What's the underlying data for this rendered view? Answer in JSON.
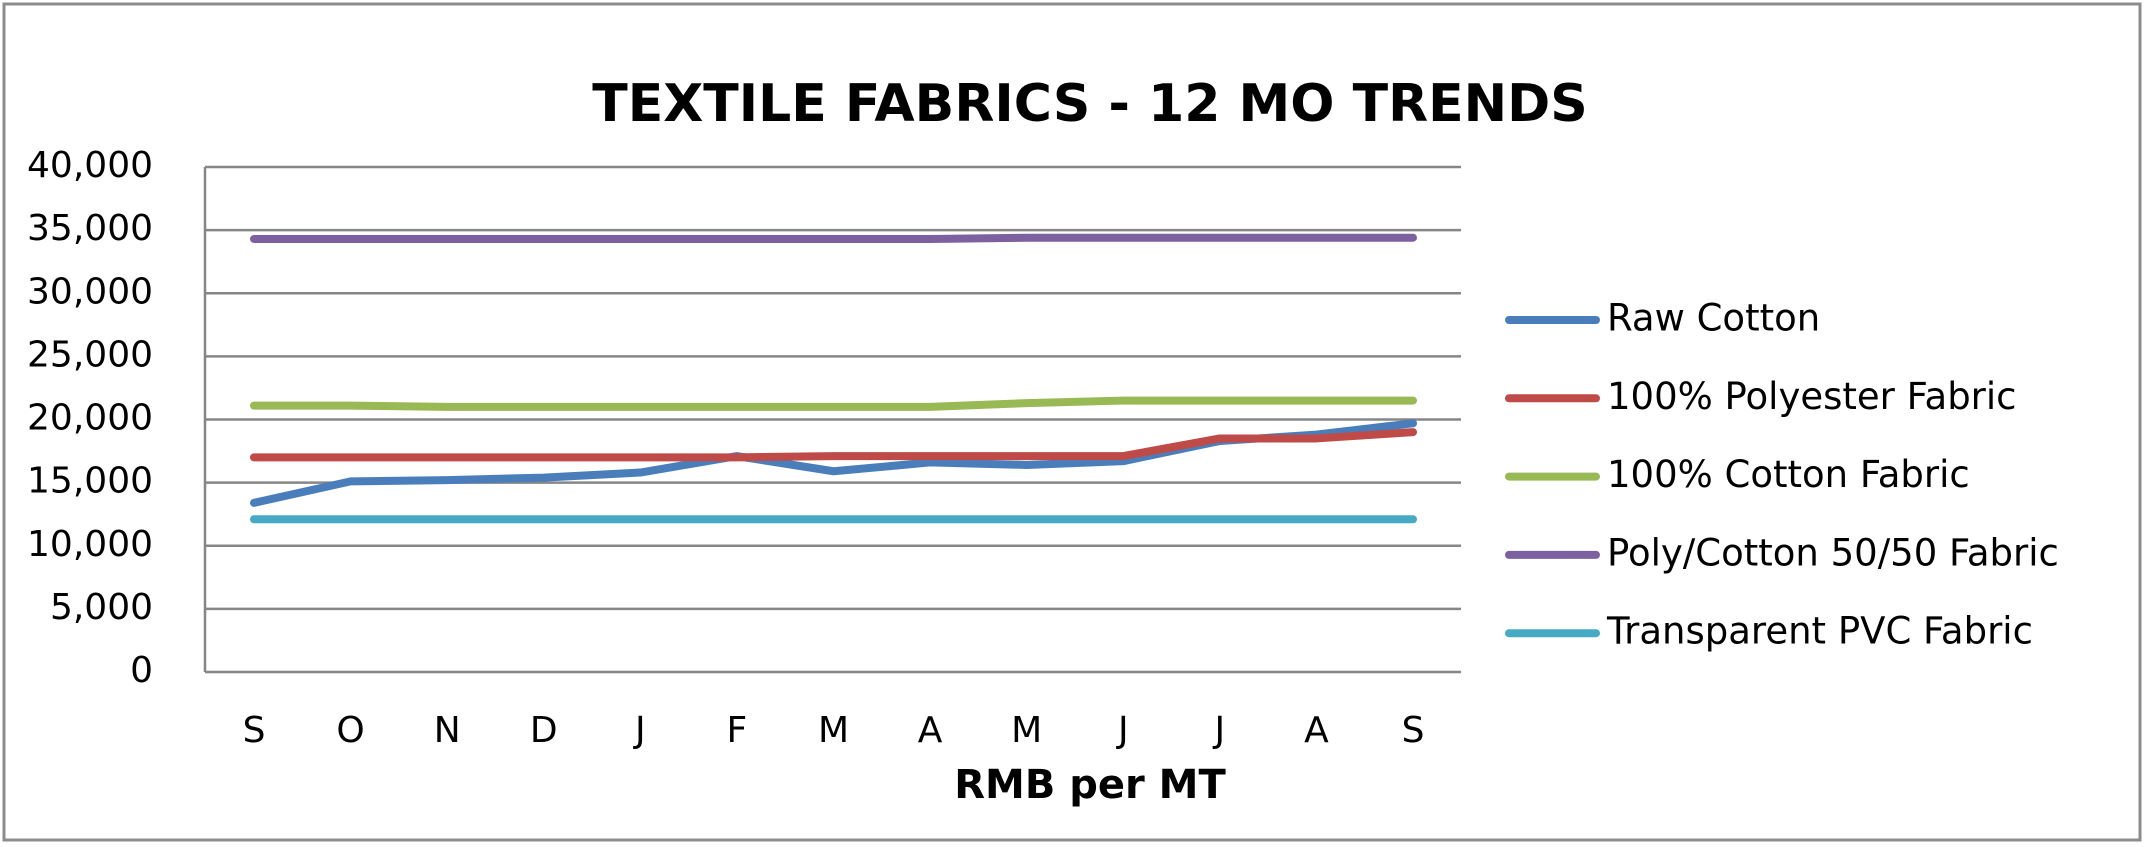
{
  "chart_data": {
    "type": "line",
    "title": "TEXTILE FABRICS - 12 MO TRENDS",
    "x_label": "RMB per MT",
    "categories": [
      "S",
      "O",
      "N",
      "D",
      "J",
      "F",
      "M",
      "A",
      "M",
      "J",
      "J",
      "A",
      "S"
    ],
    "series": [
      {
        "name": "Raw Cotton",
        "color": "#4a7ebb",
        "values": [
          13400,
          15100,
          15200,
          15400,
          15800,
          17100,
          15900,
          16600,
          16400,
          16700,
          18300,
          18800,
          19700
        ]
      },
      {
        "name": "100% Polyester Fabric",
        "color": "#be4b48",
        "values": [
          17000,
          17000,
          17000,
          17000,
          17000,
          17000,
          17100,
          17100,
          17100,
          17100,
          18500,
          18500,
          19000
        ]
      },
      {
        "name": "100% Cotton Fabric",
        "color": "#98b954",
        "values": [
          21100,
          21100,
          21000,
          21000,
          21000,
          21000,
          21000,
          21000,
          21300,
          21500,
          21500,
          21500,
          21500
        ]
      },
      {
        "name": "Poly/Cotton 50/50 Fabric",
        "color": "#7d60a0",
        "values": [
          34300,
          34300,
          34300,
          34300,
          34300,
          34300,
          34300,
          34300,
          34400,
          34400,
          34400,
          34400,
          34400
        ]
      },
      {
        "name": "Transparent PVC Fabric",
        "color": "#46aac5",
        "values": [
          12100,
          12100,
          12100,
          12100,
          12100,
          12100,
          12100,
          12100,
          12100,
          12100,
          12100,
          12100,
          12100
        ]
      }
    ],
    "ylim": [
      0,
      40000
    ],
    "yticks": [
      0,
      {
        "value": 5000,
        "label": "5,000"
      },
      {
        "value": 10000,
        "label": "10,000"
      },
      {
        "value": 15000,
        "label": "15,000"
      },
      {
        "value": 20000,
        "label": "20,000"
      },
      {
        "value": 25000,
        "label": "25,000"
      },
      {
        "value": 30000,
        "label": "30,000"
      },
      {
        "value": 35000,
        "label": "35,000"
      },
      {
        "value": 40000,
        "label": "40,000"
      }
    ],
    "grid": true,
    "legend": "right"
  }
}
